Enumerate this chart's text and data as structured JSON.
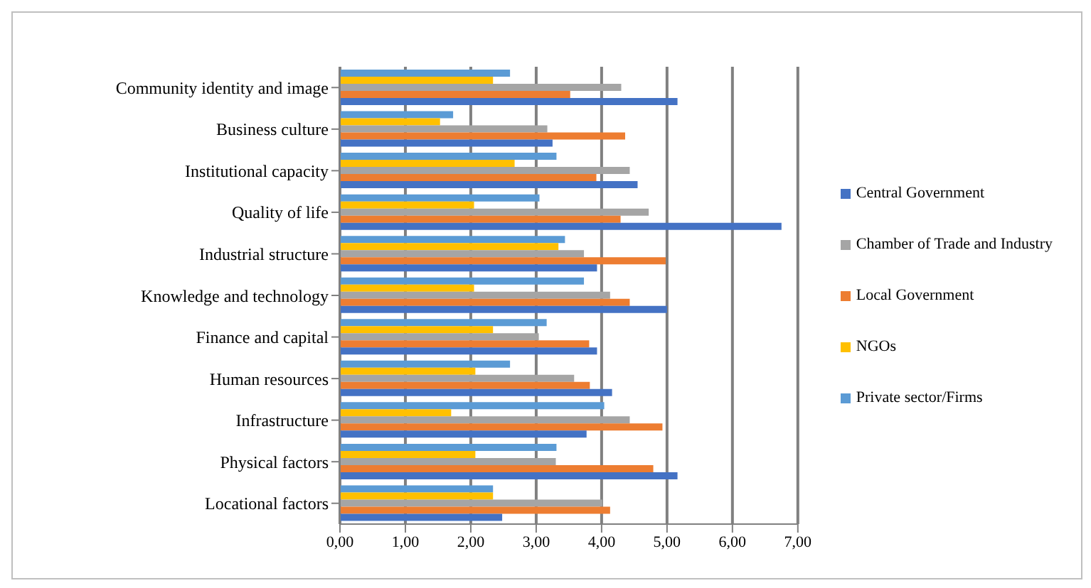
{
  "chart_data": {
    "type": "bar",
    "orientation": "horizontal",
    "categories": [
      "Community identity and image",
      "Business culture",
      "Institutional capacity",
      "Quality of life",
      "Industrial structure",
      "Knowledge and technology",
      "Finance and capital",
      "Human resources",
      "Infrastructure",
      "Physical factors",
      "Locational factors"
    ],
    "series": [
      {
        "name": "Private sector/Firms",
        "color": "#5b9bd5",
        "values": [
          2.6,
          1.73,
          3.31,
          3.05,
          3.44,
          3.73,
          3.16,
          2.6,
          4.04,
          3.31,
          2.34
        ]
      },
      {
        "name": "NGOs",
        "color": "#ffc000",
        "values": [
          2.34,
          1.53,
          2.67,
          2.05,
          3.34,
          2.05,
          2.34,
          2.07,
          1.7,
          2.07,
          2.34
        ]
      },
      {
        "name": "Chamber of Trade and Industry",
        "color": "#a5a5a5",
        "values": [
          4.3,
          3.17,
          4.43,
          4.72,
          3.73,
          4.13,
          3.04,
          3.58,
          4.43,
          3.3,
          4.01
        ]
      },
      {
        "name": "Local Government",
        "color": "#ed7d31",
        "values": [
          3.52,
          4.36,
          3.92,
          4.29,
          4.98,
          4.43,
          3.81,
          3.82,
          4.93,
          4.79,
          4.13
        ]
      },
      {
        "name": "Central Government",
        "color": "#4472c4",
        "values": [
          5.16,
          3.25,
          4.55,
          6.75,
          3.93,
          5.0,
          3.93,
          4.16,
          3.77,
          5.16,
          2.48
        ]
      }
    ],
    "xlim": [
      0,
      7
    ],
    "xticks": [
      {
        "value": 0,
        "label": "0,00"
      },
      {
        "value": 1,
        "label": "1,00"
      },
      {
        "value": 2,
        "label": "2,00"
      },
      {
        "value": 3,
        "label": "3,00"
      },
      {
        "value": 4,
        "label": "4,00"
      },
      {
        "value": 5,
        "label": "5,00"
      },
      {
        "value": 6,
        "label": "6,00"
      },
      {
        "value": 7,
        "label": "7,00"
      }
    ],
    "grid": "x",
    "legend": "right"
  }
}
